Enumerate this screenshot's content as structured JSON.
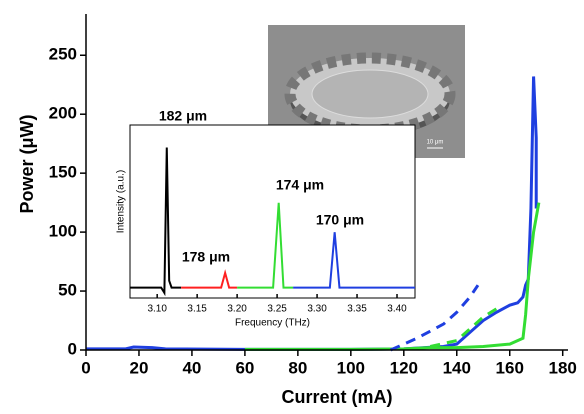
{
  "chart_data": [
    {
      "type": "line",
      "x_label": "Current (mA)",
      "y_label": "Power (μW)",
      "xlim": [
        0,
        182
      ],
      "xticks": [
        0,
        20,
        40,
        60,
        80,
        100,
        120,
        140,
        160,
        180
      ],
      "ylim": [
        0,
        285
      ],
      "yticks": [
        0,
        50,
        100,
        150,
        200,
        250
      ],
      "series": [
        {
          "color": "#1f3fe0",
          "dash": false,
          "x": [
            0,
            15,
            18,
            25,
            30,
            60,
            100,
            120,
            135,
            140,
            145,
            150,
            155,
            160,
            163,
            165,
            166,
            167,
            168,
            169,
            170,
            170
          ],
          "values": [
            1,
            1,
            2.5,
            2,
            1,
            0.5,
            0.5,
            1,
            3,
            5,
            15,
            25,
            32,
            38,
            40,
            45,
            55,
            60,
            120,
            232,
            180,
            120
          ]
        },
        {
          "color": "#33dd33",
          "dash": false,
          "x": [
            60,
            100,
            120,
            130,
            140,
            150,
            160,
            165,
            166,
            167,
            168,
            169,
            171
          ],
          "values": [
            0.5,
            0.5,
            1,
            2,
            2,
            3,
            5,
            10,
            30,
            60,
            80,
            100,
            125
          ]
        },
        {
          "color": "#1f3fe0",
          "dash": true,
          "x": [
            115,
            120,
            125,
            130,
            135,
            140,
            145,
            148
          ],
          "values": [
            0,
            5,
            10,
            16,
            22,
            32,
            45,
            55
          ]
        },
        {
          "color": "#33dd33",
          "dash": true,
          "x": [
            130,
            140,
            145,
            150,
            155
          ],
          "values": [
            3,
            8,
            18,
            28,
            35
          ]
        }
      ]
    },
    {
      "type": "line",
      "x_label": "Frequency (THz)",
      "y_label": "Intensity (a.u.)",
      "xlim": [
        3.066,
        3.4225
      ],
      "xticks": [
        {
          "value": 3.1,
          "label": "3.10"
        },
        3.15,
        {
          "value": 3.2,
          "label": "3.20"
        },
        3.25,
        {
          "value": 3.3,
          "label": "3.30"
        },
        3.35,
        {
          "value": 3.4,
          "label": "3.40"
        }
      ],
      "ylim": [
        0,
        1
      ],
      "annotations": [
        "182 μm",
        "178 μm",
        "174 μm",
        "170 μm"
      ],
      "series": [
        {
          "color": "#000000",
          "dash": false,
          "x": [
            3.066,
            3.105,
            3.109,
            3.112,
            3.115,
            3.118,
            3.13
          ],
          "values": [
            0.06,
            0.06,
            0.03,
            0.87,
            0.1,
            0.06,
            0.06
          ]
        },
        {
          "color": "#ff2020",
          "dash": false,
          "x": [
            3.13,
            3.18,
            3.185,
            3.19,
            3.2
          ],
          "values": [
            0.06,
            0.06,
            0.145,
            0.06,
            0.06
          ]
        },
        {
          "color": "#33dd33",
          "dash": false,
          "x": [
            3.2,
            3.245,
            3.252,
            3.258,
            3.27
          ],
          "values": [
            0.06,
            0.06,
            0.55,
            0.06,
            0.06
          ]
        },
        {
          "color": "#1f3fe0",
          "dash": false,
          "x": [
            3.27,
            3.316,
            3.322,
            3.328,
            3.4225
          ],
          "values": [
            0.06,
            0.06,
            0.38,
            0.06,
            0.06
          ]
        }
      ]
    }
  ],
  "image": {
    "scale_label": "10 μm"
  }
}
